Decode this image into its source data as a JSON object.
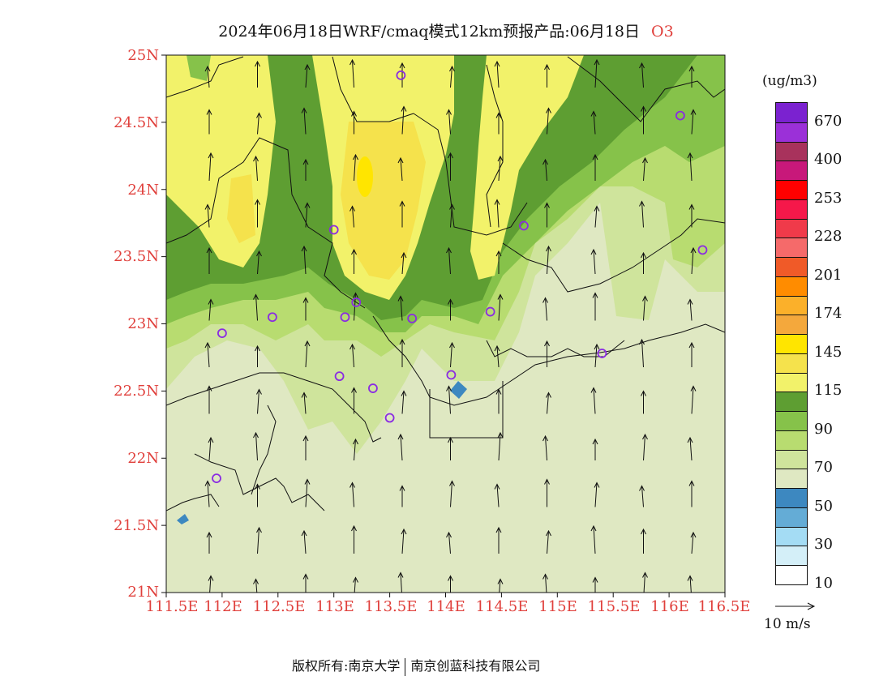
{
  "title": {
    "text": "2024年06月18日WRF/cmaq模式12km预报产品:06月18日",
    "variable": "O3"
  },
  "map": {
    "lat_labels": [
      "25N",
      "24.5N",
      "24N",
      "23.5N",
      "23N",
      "22.5N",
      "22N",
      "21.5N",
      "21N"
    ],
    "lon_labels": [
      "111.5E",
      "112E",
      "112.5E",
      "113E",
      "113.5E",
      "114E",
      "114.5E",
      "115E",
      "115.5E",
      "116E",
      "116.5E"
    ],
    "lat_range": [
      21,
      25
    ],
    "lon_range": [
      111.5,
      116.5
    ],
    "stations": [
      {
        "lon": 113.6,
        "lat": 24.85
      },
      {
        "lon": 116.1,
        "lat": 24.55
      },
      {
        "lon": 113.0,
        "lat": 23.7
      },
      {
        "lon": 114.7,
        "lat": 23.73
      },
      {
        "lon": 116.3,
        "lat": 23.55
      },
      {
        "lon": 113.2,
        "lat": 23.16
      },
      {
        "lon": 112.45,
        "lat": 23.05
      },
      {
        "lon": 113.1,
        "lat": 23.05
      },
      {
        "lon": 113.7,
        "lat": 23.04
      },
      {
        "lon": 114.4,
        "lat": 23.09
      },
      {
        "lon": 112.0,
        "lat": 22.93
      },
      {
        "lon": 115.4,
        "lat": 22.78
      },
      {
        "lon": 113.05,
        "lat": 22.61
      },
      {
        "lon": 114.05,
        "lat": 22.62
      },
      {
        "lon": 113.35,
        "lat": 22.52
      },
      {
        "lon": 113.5,
        "lat": 22.3
      },
      {
        "lon": 111.95,
        "lat": 21.85
      }
    ],
    "wind_direction": "south (northward flow)"
  },
  "colors": {
    "title_accent": "#e0403c",
    "background_field": "#dfe8c2",
    "station_marker": "#8a2be2"
  },
  "legend": {
    "unit": "(ug/m3)",
    "labels": [
      "670",
      "400",
      "253",
      "228",
      "201",
      "174",
      "145",
      "115",
      "90",
      "70",
      "50",
      "30",
      "10"
    ],
    "swatches_top_to_bottom": [
      "#7b22d0",
      "#9b30d8",
      "#a8325c",
      "#c8187a",
      "#ff0000",
      "#f5184a",
      "#f03a4a",
      "#f56a6a",
      "#f05a28",
      "#ff8c00",
      "#fbb02a",
      "#f4a83c",
      "#ffe500",
      "#f5e24c",
      "#f2f26a",
      "#5e9e32",
      "#86c24a",
      "#b8dc70",
      "#cfe49c",
      "#dfe8c2",
      "#3d88c0",
      "#64acd6",
      "#a4dcf4",
      "#d4eff8",
      "#ffffff"
    ]
  },
  "wind_key": {
    "label": "10 m/s"
  },
  "copyright": {
    "prefix": "版权所有:",
    "org1": "南京大学",
    "org2": "南京创蓝科技有限公司"
  }
}
